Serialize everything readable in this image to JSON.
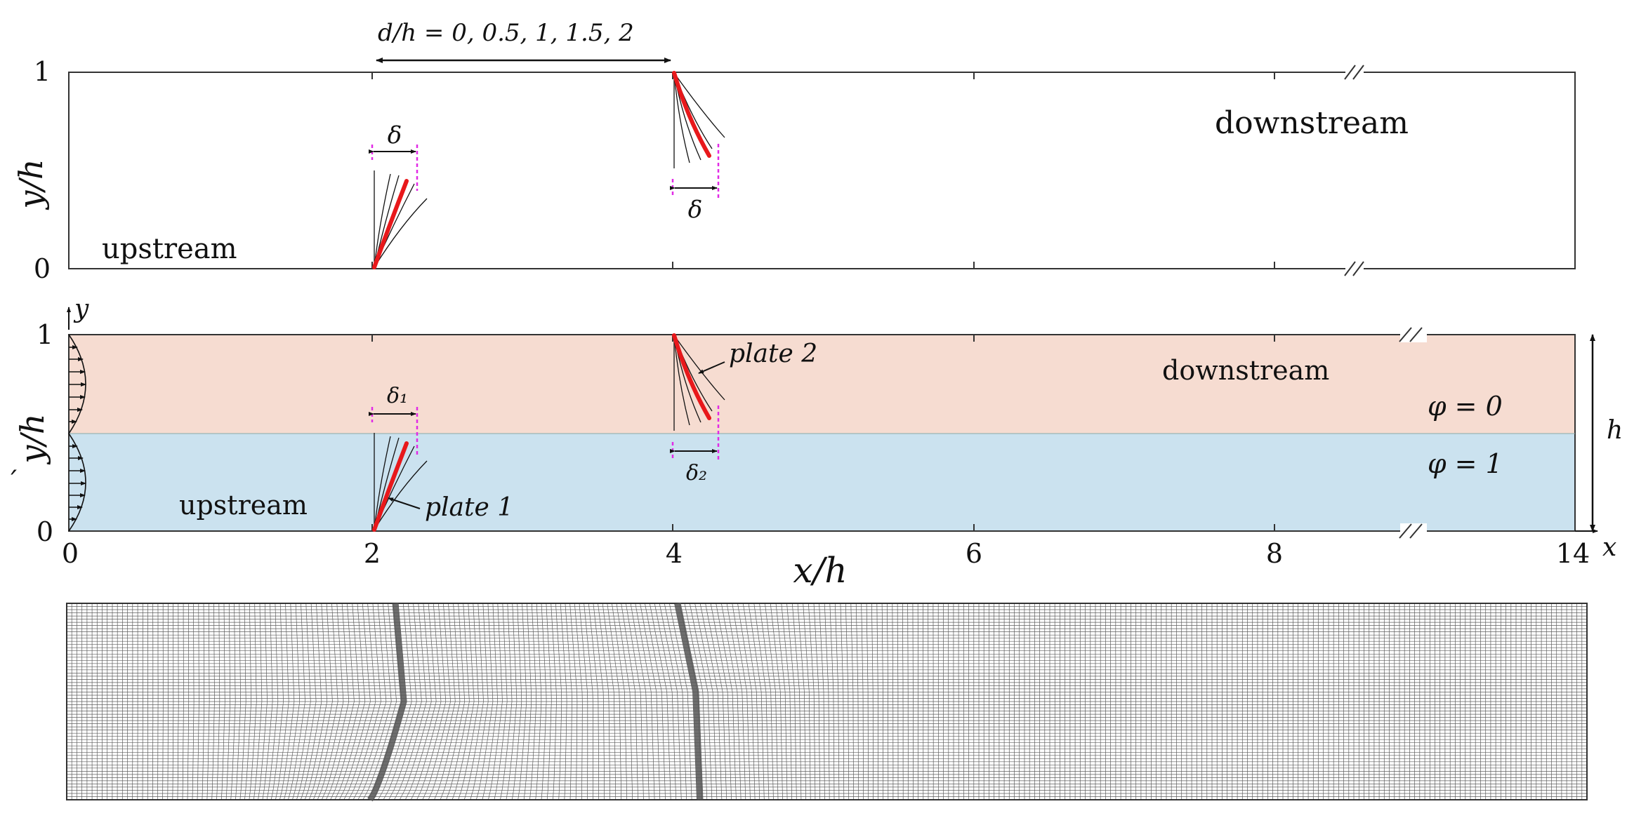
{
  "top_panel": {
    "annotation_d": "d/h = 0, 0.5, 1, 1.5, 2",
    "y_label": "y/h",
    "y_ticks": [
      "0",
      "1"
    ],
    "label_upstream": "upstream",
    "label_downstream": "downstream",
    "delta_left": "δ",
    "delta_right": "δ"
  },
  "bottom_panel": {
    "y_axis_symbol": "y",
    "y_label": "y/h",
    "y_ticks": [
      "0",
      "1"
    ],
    "x_ticks": [
      "0",
      "2",
      "4",
      "6",
      "8",
      "14"
    ],
    "x_label": "x/h",
    "x_axis_symbol": "x",
    "h_label": "h",
    "label_upstream": "upstream",
    "label_downstream": "downstream",
    "phi_top": "φ = 0",
    "phi_bottom": "φ = 1",
    "plate1": "plate 1",
    "plate2": "plate 2",
    "delta1": "δ₁",
    "delta2": "δ₂",
    "stray_mark": "´",
    "colors": {
      "upper_fluid": "#f6dcd1",
      "lower_fluid": "#cbe2ef",
      "plate": "#e8181b",
      "guide": "#e12be6"
    }
  },
  "mesh_panel": {
    "colors": {
      "line": "#2a2a2a",
      "background": "#ffffff"
    }
  }
}
